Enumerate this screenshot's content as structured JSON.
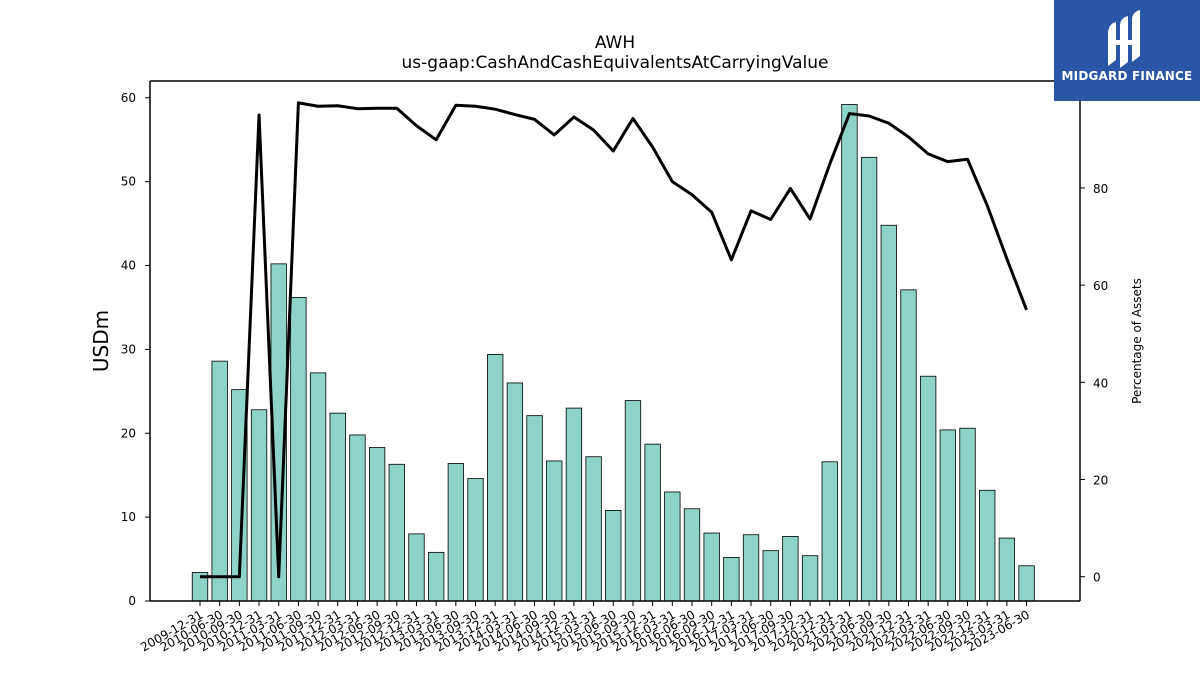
{
  "logo": {
    "text": "MIDGARD FINANCE",
    "background": "#2a56a8"
  },
  "chart_data": {
    "type": "bar",
    "title": "AWH",
    "subtitle": "us-gaap:CashAndCashEquivalentsAtCarryingValue",
    "ylabel": "USDm",
    "y2label": "Percentage of Assets",
    "ylim": [
      0,
      62
    ],
    "y2lim": [
      -5,
      102
    ],
    "yticks": [
      0,
      10,
      20,
      30,
      40,
      50,
      60
    ],
    "y2ticks": [
      0,
      20,
      40,
      60,
      80
    ],
    "bar_color": "#8dd3c7",
    "line_color": "#000000",
    "grid": false,
    "categories": [
      "2009-12-31",
      "2010-06-30",
      "2010-09-30",
      "2010-12-31",
      "2011-03-31",
      "2011-06-30",
      "2011-09-30",
      "2011-12-31",
      "2012-03-31",
      "2012-06-30",
      "2012-09-30",
      "2012-12-31",
      "2013-03-31",
      "2013-06-30",
      "2013-09-30",
      "2013-12-31",
      "2014-03-31",
      "2014-06-30",
      "2014-09-30",
      "2014-12-31",
      "2015-03-31",
      "2015-06-30",
      "2015-09-30",
      "2015-12-31",
      "2016-03-31",
      "2016-06-30",
      "2016-09-30",
      "2016-12-31",
      "2017-03-31",
      "2017-06-30",
      "2017-09-30",
      "2017-12-31",
      "2020-12-31",
      "2021-03-31",
      "2021-06-30",
      "2021-09-30",
      "2021-12-31",
      "2022-03-31",
      "2022-06-30",
      "2022-09-30",
      "2022-12-31",
      "2023-03-31",
      "2023-06-30"
    ],
    "series": [
      {
        "name": "USDm",
        "type": "bar",
        "axis": "left",
        "values": [
          3.4,
          28.6,
          25.2,
          22.8,
          40.2,
          36.2,
          27.2,
          22.4,
          19.8,
          18.3,
          16.3,
          8.0,
          5.8,
          16.4,
          14.6,
          29.4,
          26.0,
          22.1,
          16.7,
          23.0,
          17.2,
          10.8,
          23.9,
          18.7,
          13.0,
          11.0,
          8.1,
          5.2,
          7.9,
          6.0,
          7.7,
          5.4,
          16.6,
          59.2,
          52.9,
          44.8,
          37.1,
          26.8,
          20.4,
          20.6,
          13.2,
          7.5,
          4.2
        ]
      },
      {
        "name": "Percentage of Assets",
        "type": "line",
        "axis": "right",
        "values": [
          0,
          0,
          0,
          95,
          0,
          97.5,
          96.8,
          96.9,
          96.3,
          96.4,
          96.4,
          92.8,
          89.9,
          97.0,
          96.8,
          96.2,
          95.1,
          94.1,
          90.9,
          94.6,
          91.9,
          87.6,
          94.3,
          88.4,
          81.3,
          78.6,
          75.0,
          65.2,
          75.3,
          73.5,
          79.9,
          73.6,
          84.9,
          95.3,
          94.8,
          93.3,
          90.5,
          87.0,
          85.4,
          85.9,
          76.4,
          65.4,
          54.9
        ]
      }
    ]
  }
}
